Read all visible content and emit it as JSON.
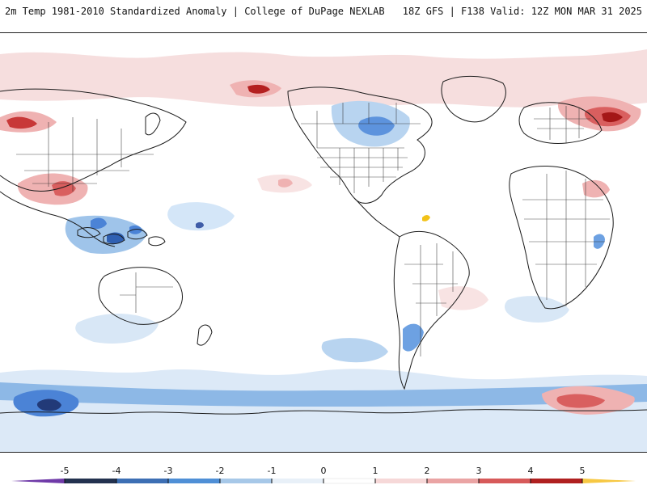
{
  "header": {
    "title_left": "2m Temp 1981-2010 Standardized Anomaly | College of DuPage NEXLAB",
    "title_right": "18Z GFS | F138 Valid: 12Z MON MAR 31 2025"
  },
  "colorbar": {
    "tick_labels": [
      "-5",
      "-4",
      "-3",
      "-2",
      "-1",
      "0",
      "1",
      "2",
      "3",
      "4",
      "5"
    ],
    "colors": {
      "lt_m5": "#6f3aa8",
      "m5_m4": "#23324f",
      "m4_m3": "#3d6fb4",
      "m3_m2": "#4f8fd6",
      "m2_m1": "#a7c8e8",
      "m1_0": "#e8f0f8",
      "p0_1": "#ffffff",
      "p1_2": "#f6d8d8",
      "p2_3": "#eaa4a4",
      "p3_4": "#d75a5a",
      "p4_5": "#b02020",
      "gt5": "#f7c843"
    }
  },
  "map": {
    "colors": {
      "land_line": "#1b1b1b",
      "anom_neg_light": "#d8e7f6",
      "anom_neg_mid": "#9fc4ea",
      "anom_neg_strong": "#4b83d6",
      "anom_neg_extreme": "#223a78",
      "anom_pos_light": "#f8e3e3",
      "anom_pos_mid": "#efb2b2",
      "anom_pos_strong": "#d95f5f",
      "anom_pos_extreme": "#a41717",
      "anom_hot": "#f2c218"
    }
  }
}
